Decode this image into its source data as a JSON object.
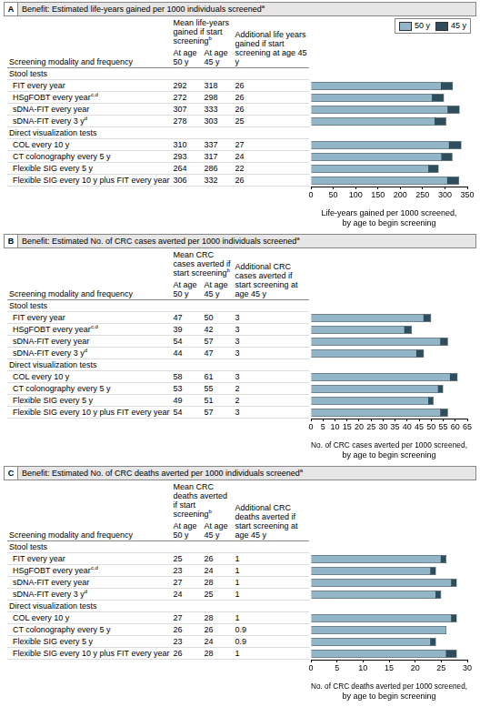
{
  "chart_data": [
    {
      "type": "bar",
      "orientation": "horizontal",
      "letter": "A",
      "title": "Benefit: Estimated life-years gained per 1000 individuals screened",
      "title_note": "a",
      "table_headers": {
        "modality": "Screening modality and frequency",
        "mean": "Mean life-years gained if start screening",
        "mean_note": "b",
        "additional": "Additional life years gained if start screening at age 45 y"
      },
      "categories": [
        "Stool tests",
        "FIT every year",
        "HSgFOBT every year",
        "sDNA-FIT every year",
        "sDNA-FIT every 3 y",
        "Direct visualization tests",
        "COL every 10 y",
        "CT colonography every 5 y",
        "Flexible SIG every 5 y",
        "Flexible SIG every 10 y plus FIT every year"
      ],
      "category_notes": [
        null,
        null,
        "c,d",
        null,
        "d",
        null,
        null,
        null,
        null,
        null
      ],
      "series": [
        {
          "name": "50 y",
          "column": "At age 50 y",
          "color": "#93b5c8",
          "values": [
            null,
            292,
            272,
            307,
            278,
            null,
            310,
            293,
            264,
            306
          ]
        },
        {
          "name": "45 y",
          "column": "At age 45 y",
          "color": "#2e4e5e",
          "values": [
            null,
            318,
            298,
            333,
            303,
            null,
            337,
            317,
            286,
            332
          ]
        }
      ],
      "additional": [
        null,
        26,
        26,
        26,
        25,
        null,
        27,
        24,
        22,
        26
      ],
      "xlim": [
        0,
        350
      ],
      "xticks": [
        0,
        50,
        100,
        150,
        200,
        250,
        300,
        350
      ],
      "x_label": [
        "Life-years gained per 1000 screened,",
        "by age to begin screening"
      ],
      "grid": false,
      "legend": "top right"
    },
    {
      "type": "bar",
      "orientation": "horizontal",
      "letter": "B",
      "title": "Benefit: Estimated No. of CRC cases averted per 1000 individuals screened",
      "title_note": "a",
      "table_headers": {
        "modality": "Screening modality and frequency",
        "mean": "Mean CRC cases averted if start screening",
        "mean_note": "b",
        "additional": "Additional CRC cases averted if start screening at age 45 y"
      },
      "categories": [
        "Stool tests",
        "FIT every year",
        "HSgFOBT every year",
        "sDNA-FIT every year",
        "sDNA-FIT every 3 y",
        "Direct visualization tests",
        "COL every 10 y",
        "CT colonography every 5 y",
        "Flexible SIG every 5 y",
        "Flexible SIG every 10 y plus FIT every year"
      ],
      "category_notes": [
        null,
        null,
        "c,d",
        null,
        "d",
        null,
        null,
        null,
        null,
        null
      ],
      "series": [
        {
          "name": "50 y",
          "column": "At age 50 y",
          "color": "#93b5c8",
          "values": [
            null,
            47,
            39,
            54,
            44,
            null,
            58,
            53,
            49,
            54
          ]
        },
        {
          "name": "45 y",
          "column": "At age 45 y",
          "color": "#2e4e5e",
          "values": [
            null,
            50,
            42,
            57,
            47,
            null,
            61,
            55,
            51,
            57
          ]
        }
      ],
      "additional": [
        null,
        3,
        3,
        3,
        3,
        null,
        3,
        2,
        2,
        3
      ],
      "xlim": [
        0,
        65
      ],
      "xticks": [
        0,
        5,
        10,
        15,
        20,
        25,
        30,
        35,
        40,
        45,
        50,
        55,
        60,
        65
      ],
      "x_label": [
        "No. of CRC cases averted per 1000 screened,",
        "by age to begin screening"
      ],
      "grid": false
    },
    {
      "type": "bar",
      "orientation": "horizontal",
      "letter": "C",
      "title": "Benefit: Estimated No. of CRC deaths averted per 1000 individuals screened",
      "title_note": "a",
      "table_headers": {
        "modality": "Screening modality and frequency",
        "mean": "Mean CRC deaths averted if start screening",
        "mean_note": "b",
        "additional": "Additional CRC deaths averted if start screening at age 45 y"
      },
      "categories": [
        "Stool tests",
        "FIT every year",
        "HSgFOBT every year",
        "sDNA-FIT every year",
        "sDNA-FIT every 3 y",
        "Direct visualization tests",
        "COL every 10 y",
        "CT colonography every 5 y",
        "Flexible SIG every 5 y",
        "Flexible SIG every 10 y plus FIT every year"
      ],
      "category_notes": [
        null,
        null,
        "c,d",
        null,
        "d",
        null,
        null,
        null,
        null,
        null
      ],
      "series": [
        {
          "name": "50 y",
          "column": "At age 50 y",
          "color": "#93b5c8",
          "values": [
            null,
            25,
            23,
            27,
            24,
            null,
            27,
            26,
            23,
            26
          ]
        },
        {
          "name": "45 y",
          "column": "At age 45 y",
          "color": "#2e4e5e",
          "values": [
            null,
            26,
            24,
            28,
            25,
            null,
            28,
            26,
            24,
            28
          ]
        }
      ],
      "additional": [
        null,
        1,
        1,
        1,
        1,
        null,
        1,
        0.9,
        0.9,
        1
      ],
      "xlim": [
        0,
        30
      ],
      "xticks": [
        0,
        5,
        10,
        15,
        20,
        25,
        30
      ],
      "x_label": [
        "No. of CRC deaths averted per 1000 screened,",
        "by age to begin screening"
      ],
      "grid": false
    }
  ]
}
